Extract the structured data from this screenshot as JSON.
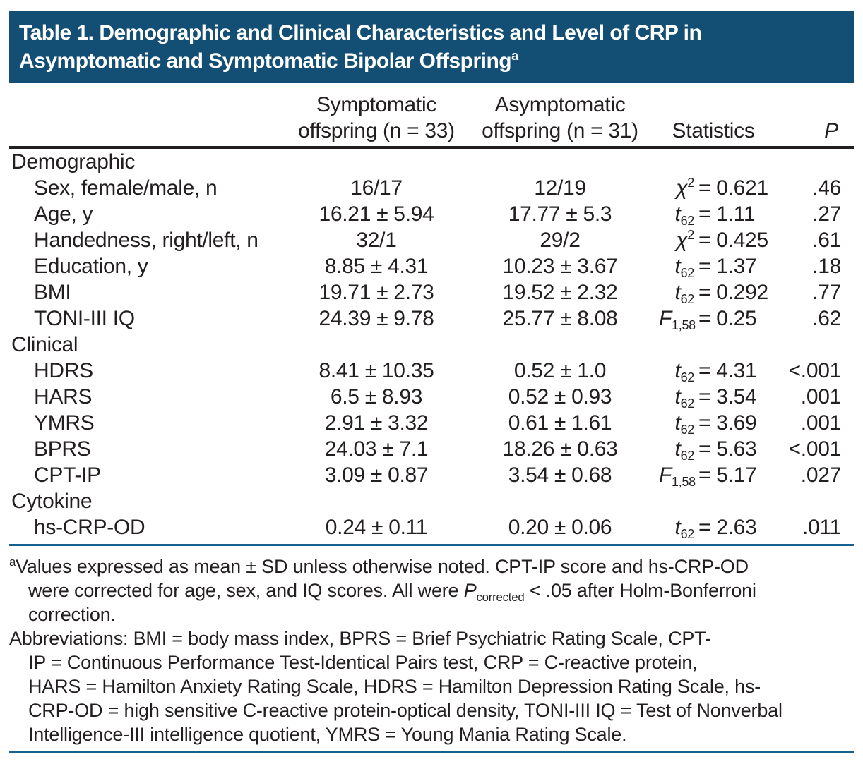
{
  "colors": {
    "title_bar_background": "#134e74",
    "title_text": "#ffffff",
    "header_rule": "#231f20",
    "blue_rule": "#17618f",
    "body_text": "#231f20"
  },
  "title": {
    "line1": "Table 1. Demographic and Clinical Characteristics and Level of CRP in",
    "line2": "Asymptomatic and Symptomatic Bipolar Offspring",
    "marker": "a"
  },
  "header": {
    "group1_line1": "Symptomatic",
    "group1_line2": "offspring (n = 33)",
    "group2_line1": "Asymptomatic",
    "group2_line2": "offspring (n = 31)",
    "statistics": "Statistics",
    "p": "P"
  },
  "rows": [
    {
      "type": "section",
      "label": "Demographic"
    },
    {
      "type": "data",
      "label": "Sex, female/male, n",
      "symptomatic": "16/17",
      "asymptomatic": "12/19",
      "stat": {
        "sym": "χ",
        "sup": "2",
        "eq": "= 0.621"
      },
      "p": ".46"
    },
    {
      "type": "data",
      "label": "Age, y",
      "symptomatic": "16.21 ± 5.94",
      "asymptomatic": "17.77 ± 5.3",
      "stat": {
        "sym": "t",
        "sub": "62",
        "eq": "= 1.11"
      },
      "p": ".27"
    },
    {
      "type": "data",
      "label": "Handedness, right/left, n",
      "symptomatic": "32/1",
      "asymptomatic": "29/2",
      "stat": {
        "sym": "χ",
        "sup": "2",
        "eq": "= 0.425"
      },
      "p": ".61"
    },
    {
      "type": "data",
      "label": "Education, y",
      "symptomatic": "8.85 ± 4.31",
      "asymptomatic": "10.23 ± 3.67",
      "stat": {
        "sym": "t",
        "sub": "62",
        "eq": "= 1.37"
      },
      "p": ".18"
    },
    {
      "type": "data",
      "label": "BMI",
      "symptomatic": "19.71 ± 2.73",
      "asymptomatic": "19.52 ± 2.32",
      "stat": {
        "sym": "t",
        "sub": "62",
        "eq": "= 0.292"
      },
      "p": ".77"
    },
    {
      "type": "data",
      "label": "TONI-III IQ",
      "symptomatic": "24.39 ± 9.78",
      "asymptomatic": "25.77 ± 8.08",
      "stat": {
        "sym": "F",
        "sub": "1,58",
        "eq": "= 0.25"
      },
      "p": ".62"
    },
    {
      "type": "section",
      "label": "Clinical"
    },
    {
      "type": "data",
      "label": "HDRS",
      "symptomatic": "8.41 ± 10.35",
      "asymptomatic": "0.52 ± 1.0",
      "stat": {
        "sym": "t",
        "sub": "62",
        "eq": "= 4.31"
      },
      "p": "<.001"
    },
    {
      "type": "data",
      "label": "HARS",
      "symptomatic": "6.5 ± 8.93",
      "asymptomatic": "0.52 ± 0.93",
      "stat": {
        "sym": "t",
        "sub": "62",
        "eq": "= 3.54"
      },
      "p": ".001"
    },
    {
      "type": "data",
      "label": "YMRS",
      "symptomatic": "2.91 ± 3.32",
      "asymptomatic": "0.61 ± 1.61",
      "stat": {
        "sym": "t",
        "sub": "62",
        "eq": "= 3.69"
      },
      "p": ".001"
    },
    {
      "type": "data",
      "label": "BPRS",
      "symptomatic": "24.03 ± 7.1",
      "asymptomatic": "18.26 ± 0.63",
      "stat": {
        "sym": "t",
        "sub": "62",
        "eq": "= 5.63"
      },
      "p": "<.001"
    },
    {
      "type": "data",
      "label": "CPT-IP",
      "symptomatic": "3.09 ± 0.87",
      "asymptomatic": "3.54 ± 0.68",
      "stat": {
        "sym": "F",
        "sub": "1,58",
        "eq": "= 5.17"
      },
      "p": ".027"
    },
    {
      "type": "section",
      "label": "Cytokine"
    },
    {
      "type": "data",
      "label": "hs-CRP-OD",
      "symptomatic": "0.24 ± 0.11",
      "asymptomatic": "0.20 ± 0.06",
      "stat": {
        "sym": "t",
        "sub": "62",
        "eq": "= 2.63"
      },
      "p": ".011"
    }
  ],
  "footnote_a": {
    "marker": "a",
    "line1": "Values expressed as mean ± SD unless otherwise noted. CPT-IP score and hs-CRP-OD",
    "line2_pre": "were corrected for age, sex, and IQ scores. All were ",
    "line2_p": "P",
    "line2_sub": "corrected",
    "line2_post": " < .05 after Holm-Bonferroni",
    "line3": "correction."
  },
  "abbreviations": {
    "line1": "Abbreviations: BMI = body mass index, BPRS = Brief Psychiatric Rating Scale, CPT-",
    "line2": "IP = Continuous Performance Test-Identical Pairs test, CRP = C-reactive protein,",
    "line3": "HARS = Hamilton Anxiety Rating Scale, HDRS = Hamilton Depression Rating Scale, hs-",
    "line4": "CRP-OD = high sensitive C-reactive protein-optical density, TONI-III IQ = Test of Nonverbal",
    "line5": "Intelligence-III intelligence quotient, YMRS = Young Mania Rating Scale."
  }
}
